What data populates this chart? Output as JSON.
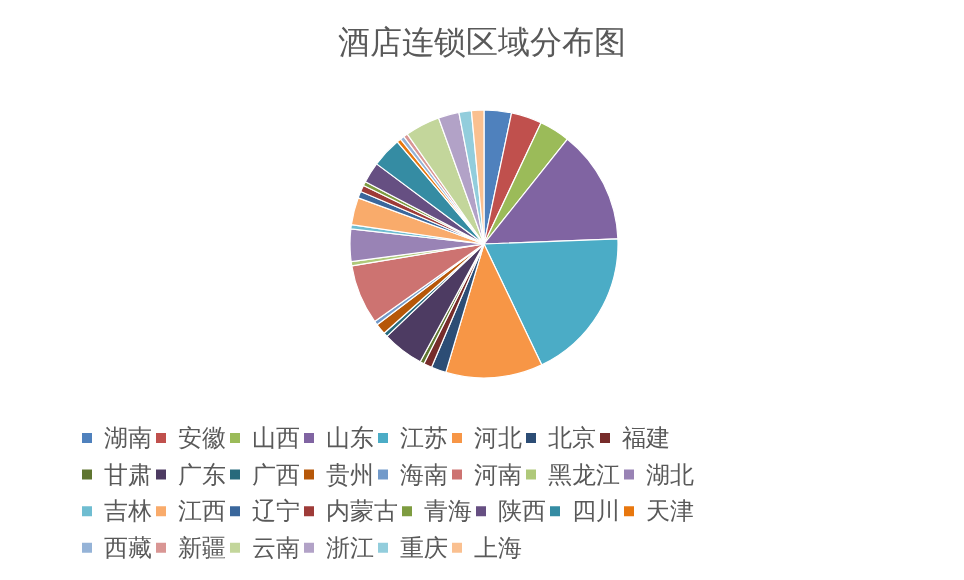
{
  "chart_data": {
    "type": "pie",
    "title": "酒店连锁区域分布图",
    "categories": [
      "湖南",
      "安徽",
      "山西",
      "山东",
      "江苏",
      "河北",
      "北京",
      "福建",
      "甘肃",
      "广东",
      "广西",
      "贵州",
      "海南",
      "河南",
      "黑龙江",
      "湖北",
      "吉林",
      "江西",
      "辽宁",
      "内蒙古",
      "青海",
      "陕西",
      "四川",
      "天津",
      "西藏",
      "新疆",
      "云南",
      "浙江",
      "重庆",
      "上海"
    ],
    "values": [
      3.3,
      3.7,
      3.7,
      13.7,
      18.5,
      11.7,
      1.8,
      1,
      0.5,
      5,
      0.5,
      1.3,
      0.5,
      7.2,
      0.5,
      3.9,
      0.5,
      3.3,
      0.8,
      0.8,
      0.5,
      2.5,
      3.6,
      0.5,
      0.5,
      0.5,
      4.2,
      2.5,
      1.5,
      1.5
    ],
    "colors": [
      "#4f81bd",
      "#c0504d",
      "#9bbb59",
      "#8064a2",
      "#4bacc6",
      "#f79646",
      "#2c4d75",
      "#772c2a",
      "#5f7530",
      "#4d3b62",
      "#276a7c",
      "#b65708",
      "#729aca",
      "#cd7371",
      "#afc97a",
      "#9983b5",
      "#6fbdd1",
      "#f9ab6b",
      "#3a679c",
      "#9e3b38",
      "#7e9c40",
      "#664f82",
      "#358ca3",
      "#e8770e",
      "#95b3d7",
      "#d99694",
      "#c3d69b",
      "#b2a2c7",
      "#92cddc",
      "#fac090"
    ],
    "legend": "bottom"
  }
}
